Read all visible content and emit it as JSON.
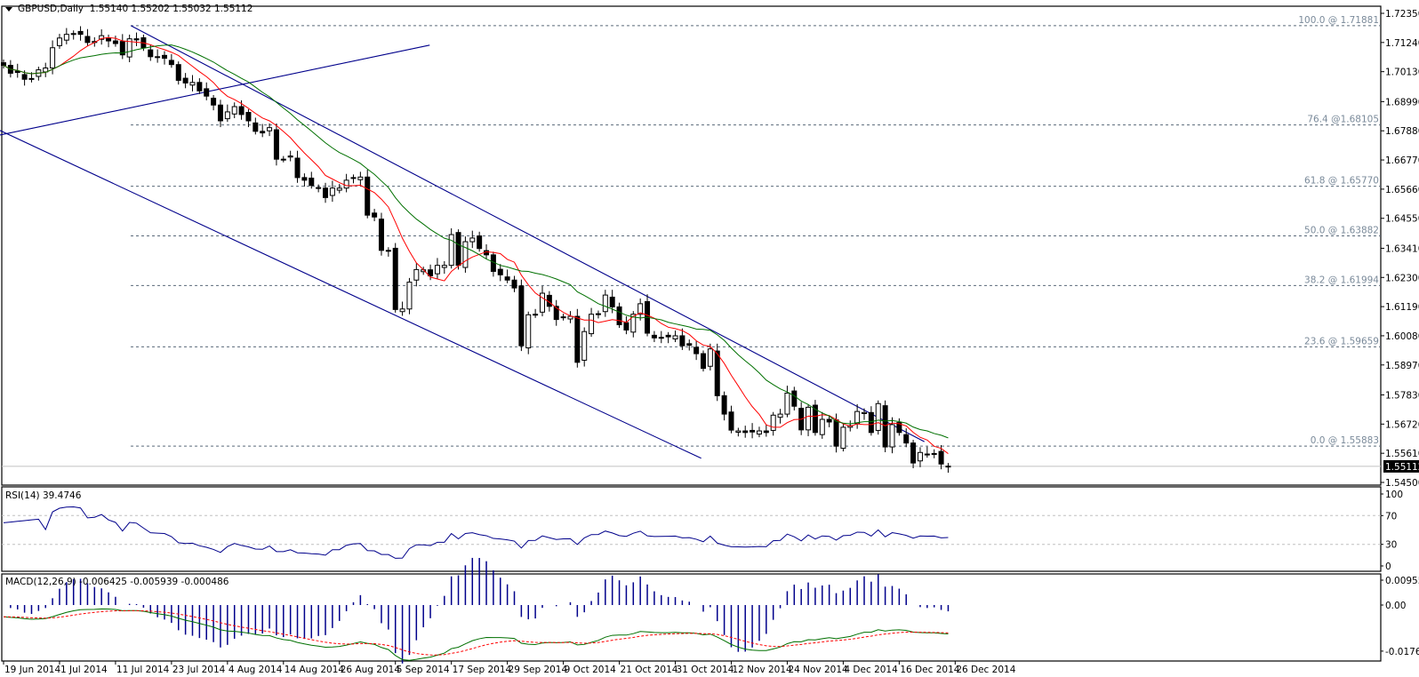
{
  "header": {
    "symbol": "GBPUSD,Daily",
    "open": "1.55140",
    "high": "1.55202",
    "low": "1.55032",
    "close": "1.55112"
  },
  "rsi_label": "RSI(14) 39.4746",
  "macd_label": "MACD(12,26,9) -0.006425 -0.005939 -0.000486",
  "current_price_label": "1.55112",
  "colors": {
    "bull_body": "#ffffff",
    "bear_body": "#000000",
    "ma_fast": "#ff0000",
    "ma_slow": "#007000",
    "trendline": "#00008b",
    "fib": "#5a6a7a",
    "rsi": "#00008b",
    "macd_hist": "#00008b",
    "macd_main": "#007000",
    "macd_signal": "#ff0000"
  },
  "chart_data": [
    {
      "type": "candlestick",
      "title": "GBPUSD,Daily",
      "ylim": [
        1.5432,
        1.7258
      ],
      "y_ticks": [
        "1.72350",
        "1.71240",
        "1.70130",
        "1.68990",
        "1.67880",
        "1.66770",
        "1.65660",
        "1.64550",
        "1.63410",
        "1.62300",
        "1.61190",
        "1.60080",
        "1.58970",
        "1.57830",
        "1.56720",
        "1.55610",
        "1.54500"
      ],
      "x_ticks": [
        {
          "bar": 0,
          "label": "19 Jun 2014"
        },
        {
          "bar": 8,
          "label": "1 Jul 2014"
        },
        {
          "bar": 16,
          "label": "11 Jul 2014"
        },
        {
          "bar": 24,
          "label": "23 Jul 2014"
        },
        {
          "bar": 32,
          "label": "4 Aug 2014"
        },
        {
          "bar": 40,
          "label": "14 Aug 2014"
        },
        {
          "bar": 48,
          "label": "26 Aug 2014"
        },
        {
          "bar": 56,
          "label": "5 Sep 2014"
        },
        {
          "bar": 64,
          "label": "17 Sep 2014"
        },
        {
          "bar": 72,
          "label": "29 Sep 2014"
        },
        {
          "bar": 80,
          "label": "9 Oct 2014"
        },
        {
          "bar": 88,
          "label": "21 Oct 2014"
        },
        {
          "bar": 96,
          "label": "31 Oct 2014"
        },
        {
          "bar": 104,
          "label": "12 Nov 2014"
        },
        {
          "bar": 112,
          "label": "24 Nov 2014"
        },
        {
          "bar": 120,
          "label": "4 Dec 2014"
        },
        {
          "bar": 128,
          "label": "16 Dec 2014"
        },
        {
          "bar": 136,
          "label": "26 Dec 2014"
        }
      ],
      "closes": [
        1.7037,
        1.7007,
        1.701,
        1.6984,
        1.6987,
        1.702,
        1.7027,
        1.7104,
        1.7141,
        1.7155,
        1.7158,
        1.7155,
        1.7124,
        1.7128,
        1.715,
        1.713,
        1.712,
        1.7077,
        1.7138,
        1.7134,
        1.7104,
        1.707,
        1.7067,
        1.7064,
        1.704,
        1.698,
        1.697,
        1.6972,
        1.694,
        1.692,
        1.6886,
        1.6826,
        1.686,
        1.688,
        1.685,
        1.6826,
        1.6786,
        1.678,
        1.68,
        1.668,
        1.668,
        1.6692,
        1.661,
        1.66,
        1.658,
        1.657,
        1.6534,
        1.657,
        1.657,
        1.66,
        1.661,
        1.6612,
        1.6467,
        1.646,
        1.6333,
        1.6333,
        1.6108,
        1.611,
        1.6212,
        1.626,
        1.6259,
        1.6236,
        1.6276,
        1.6276,
        1.6393,
        1.6276,
        1.6366,
        1.638,
        1.634,
        1.6316,
        1.6253,
        1.624,
        1.622,
        1.619,
        1.597,
        1.6088,
        1.609,
        1.617,
        1.612,
        1.607,
        1.608,
        1.6082,
        1.5907,
        1.6024,
        1.609,
        1.6092,
        1.6163,
        1.6118,
        1.605,
        1.603,
        1.609,
        1.613,
        1.6018,
        1.6,
        1.6002,
        1.6004,
        1.6008,
        1.597,
        1.5972,
        1.594,
        1.5884,
        1.5958,
        1.578,
        1.571,
        1.5649,
        1.5646,
        1.564,
        1.5642,
        1.5646,
        1.564,
        1.5706,
        1.571,
        1.579,
        1.574,
        1.565,
        1.5736,
        1.564,
        1.569,
        1.568,
        1.5588,
        1.566,
        1.5666,
        1.572,
        1.5716,
        1.564,
        1.575,
        1.5585,
        1.567,
        1.564,
        1.56,
        1.5524,
        1.5564,
        1.5558,
        1.556,
        1.552,
        1.5511
      ],
      "fib_levels": [
        {
          "price": 1.71881,
          "label": "100.0 @ 1.71881"
        },
        {
          "price": 1.68105,
          "label": "76.4 @1.68105"
        },
        {
          "price": 1.6577,
          "label": "61.8 @ 1.65770"
        },
        {
          "price": 1.63882,
          "label": "50.0 @ 1.63882"
        },
        {
          "price": 1.61994,
          "label": "38.2 @ 1.61994"
        },
        {
          "price": 1.59659,
          "label": "23.6 @ 1.59659"
        },
        {
          "price": 1.55883,
          "label": "0.0 @ 1.55883"
        }
      ],
      "trendlines": [
        {
          "name": "channel-upper",
          "from": [
            18.2,
            1.7188
          ],
          "to": [
            131.6,
            1.5605
          ]
        },
        {
          "name": "channel-lower",
          "from": [
            -0.5,
            1.6789
          ],
          "to": [
            99.7,
            1.5542
          ]
        },
        {
          "name": "rising-line",
          "from": [
            -0.5,
            1.6772
          ],
          "to": [
            60.9,
            1.7114
          ]
        }
      ],
      "current_price": 1.55112
    },
    {
      "type": "line",
      "title": "RSI(14)",
      "value": 39.4746,
      "ylim": [
        0,
        100
      ],
      "levels": [
        70,
        30
      ],
      "y_ticks": [
        "100",
        "70",
        "30",
        "0"
      ]
    },
    {
      "type": "macd",
      "title": "MACD(12,26,9)",
      "main": -0.006425,
      "signal": -0.005939,
      "hist": -0.000486,
      "ylim": [
        -0.017692,
        0.00955
      ],
      "y_ticks": [
        "0.00955",
        "0.00",
        "-0.017692"
      ]
    }
  ]
}
